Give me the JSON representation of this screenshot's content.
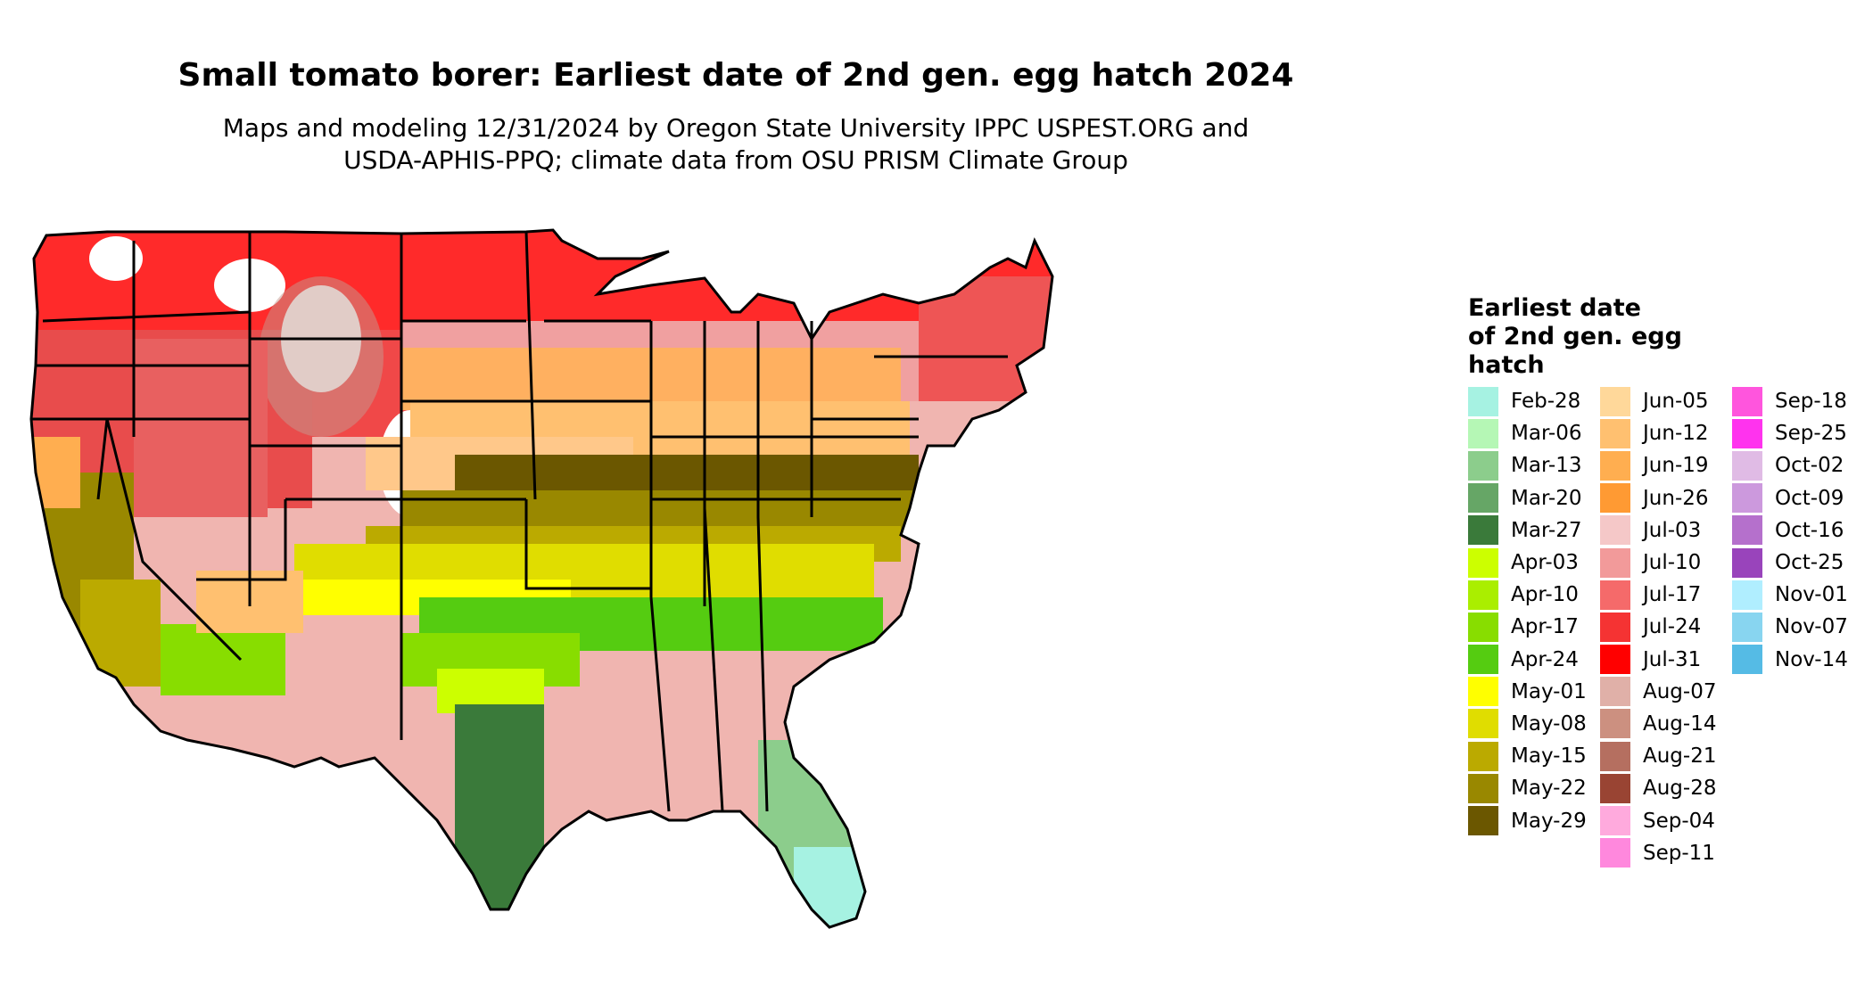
{
  "title": "Small tomato borer: Earliest date of 2nd gen. egg hatch 2024",
  "subtitle_line1": "Maps and modeling 12/31/2024 by Oregon State University IPPC USPEST.ORG and",
  "subtitle_line2": "USDA-APHIS-PPQ; climate data from OSU PRISM Climate Group",
  "legend": {
    "title_line1": "Earliest date",
    "title_line2": "of 2nd gen. egg",
    "title_line3": "hatch",
    "items": [
      {
        "label": "Feb-28",
        "color": "#a6f2e2"
      },
      {
        "label": "Mar-06",
        "color": "#b5f7b5"
      },
      {
        "label": "Mar-13",
        "color": "#8ccd8c"
      },
      {
        "label": "Mar-20",
        "color": "#66a666"
      },
      {
        "label": "Mar-27",
        "color": "#3a7a3a"
      },
      {
        "label": "Apr-03",
        "color": "#ccff00"
      },
      {
        "label": "Apr-10",
        "color": "#aaee00"
      },
      {
        "label": "Apr-17",
        "color": "#88dd00"
      },
      {
        "label": "Apr-24",
        "color": "#55cc11"
      },
      {
        "label": "May-01",
        "color": "#ffff00"
      },
      {
        "label": "May-08",
        "color": "#e0dd00"
      },
      {
        "label": "May-15",
        "color": "#bbaa00"
      },
      {
        "label": "May-22",
        "color": "#998800"
      },
      {
        "label": "May-29",
        "color": "#6b5700"
      },
      {
        "label": "Jun-05",
        "color": "#ffd89a"
      },
      {
        "label": "Jun-12",
        "color": "#ffc070"
      },
      {
        "label": "Jun-19",
        "color": "#ffae50"
      },
      {
        "label": "Jun-26",
        "color": "#ff9a33"
      },
      {
        "label": "Jul-03",
        "color": "#f5c8c8"
      },
      {
        "label": "Jul-10",
        "color": "#f29a9a"
      },
      {
        "label": "Jul-17",
        "color": "#f56a6a"
      },
      {
        "label": "Jul-24",
        "color": "#f53333"
      },
      {
        "label": "Jul-31",
        "color": "#ff0000"
      },
      {
        "label": "Aug-07",
        "color": "#e0b0a8"
      },
      {
        "label": "Aug-14",
        "color": "#cc9080"
      },
      {
        "label": "Aug-21",
        "color": "#b56f60"
      },
      {
        "label": "Aug-28",
        "color": "#994433"
      },
      {
        "label": "Sep-04",
        "color": "#ffaadd"
      },
      {
        "label": "Sep-11",
        "color": "#ff88dd"
      },
      {
        "label": "Sep-18",
        "color": "#ff55dd"
      },
      {
        "label": "Sep-25",
        "color": "#ff33ee"
      },
      {
        "label": "Oct-02",
        "color": "#e0bbe5"
      },
      {
        "label": "Oct-09",
        "color": "#cc99dd"
      },
      {
        "label": "Oct-16",
        "color": "#b570cc"
      },
      {
        "label": "Oct-25",
        "color": "#9944bb"
      },
      {
        "label": "Nov-01",
        "color": "#b0eeff"
      },
      {
        "label": "Nov-07",
        "color": "#88d5f0"
      },
      {
        "label": "Nov-14",
        "color": "#55bbe5"
      }
    ]
  }
}
